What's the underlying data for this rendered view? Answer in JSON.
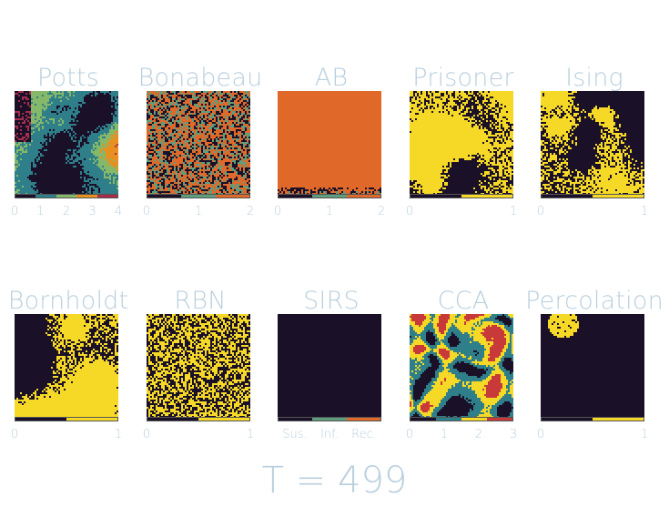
{
  "panels": [
    {
      "title": "Potts",
      "ticks": [
        "0",
        "1",
        "2",
        "3",
        "4"
      ],
      "colors": [
        "#1a1028",
        "#2e7f8a",
        "#86b86a",
        "#e8901f",
        "#a82c4c"
      ],
      "pattern": "potts"
    },
    {
      "title": "Bonabeau",
      "ticks": [
        "0",
        "1",
        "2"
      ],
      "colors": [
        "#1a1028",
        "#5e9e7e",
        "#e0692a"
      ],
      "pattern": "noise3"
    },
    {
      "title": "AB",
      "ticks": [
        "0",
        "1",
        "2"
      ],
      "colors": [
        "#1a1028",
        "#5e9e7e",
        "#e0692a"
      ],
      "pattern": "ab"
    },
    {
      "title": "Prisoner",
      "ticks": [
        "0",
        "1"
      ],
      "colors": [
        "#1a1028",
        "#f5d926"
      ],
      "pattern": "prisoner"
    },
    {
      "title": "Ising",
      "ticks": [
        "0",
        "1"
      ],
      "colors": [
        "#1a1028",
        "#f5d926"
      ],
      "pattern": "ising"
    },
    {
      "title": "Bornholdt",
      "ticks": [
        "0",
        "1"
      ],
      "colors": [
        "#1a1028",
        "#f5d926"
      ],
      "pattern": "bornholdt"
    },
    {
      "title": "RBN",
      "ticks": [
        "0",
        "1"
      ],
      "colors": [
        "#1a1028",
        "#f5d926"
      ],
      "pattern": "rbn"
    },
    {
      "title": "SIRS",
      "ticks": [
        "Sus.",
        "Inf.",
        "Rec."
      ],
      "colors": [
        "#1a1028",
        "#5e9e7e",
        "#e0692a"
      ],
      "pattern": "sirs"
    },
    {
      "title": "CCA",
      "ticks": [
        "0",
        "1",
        "2",
        "3"
      ],
      "colors": [
        "#1a1028",
        "#2e7f8a",
        "#f5d926",
        "#c83a3a"
      ],
      "pattern": "cca"
    },
    {
      "title": "Percolation",
      "ticks": [
        "0",
        "1"
      ],
      "colors": [
        "#1a1028",
        "#f5d926"
      ],
      "pattern": "percolation"
    }
  ],
  "time_label": "T = 499"
}
